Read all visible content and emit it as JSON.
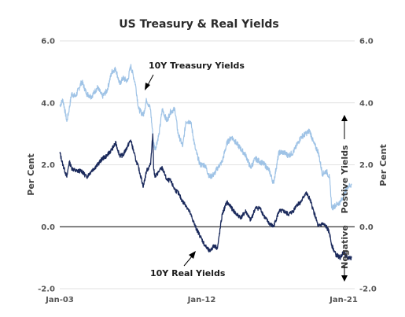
{
  "chart_data": {
    "type": "line",
    "title": "US Treasury & Real Yields",
    "ylabel_left": "Per Cent",
    "ylabel_right": "Per Cent",
    "ylim": [
      -2.0,
      6.0
    ],
    "y_ticks": [
      "6.0",
      "4.0",
      "2.0",
      "0.0",
      "-2.0"
    ],
    "xlim": [
      2003.0,
      2021.7
    ],
    "x_ticks": [
      {
        "label": "Jan-03",
        "year": 2003.0
      },
      {
        "label": "Jan-12",
        "year": 2012.0
      },
      {
        "label": "Jan-21",
        "year": 2021.0
      }
    ],
    "grid": true,
    "zero_line": true,
    "colors": {
      "treasury": "#9fc3e6",
      "real": "#1b2a5c",
      "grid": "#d9d9d9",
      "zero": "#000000"
    },
    "series": [
      {
        "name": "10Y Treasury Yields",
        "x": [
          2003.0,
          2003.2,
          2003.45,
          2003.6,
          2003.75,
          2004.0,
          2004.4,
          2004.7,
          2005.0,
          2005.4,
          2005.7,
          2006.0,
          2006.3,
          2006.55,
          2006.8,
          2007.0,
          2007.3,
          2007.5,
          2007.8,
          2008.0,
          2008.3,
          2008.5,
          2008.75,
          2008.95,
          2009.05,
          2009.3,
          2009.5,
          2009.8,
          2010.0,
          2010.3,
          2010.5,
          2010.8,
          2011.0,
          2011.3,
          2011.6,
          2011.9,
          2012.2,
          2012.5,
          2012.8,
          2013.0,
          2013.3,
          2013.6,
          2013.9,
          2014.2,
          2014.5,
          2014.8,
          2015.1,
          2015.4,
          2015.7,
          2016.0,
          2016.3,
          2016.55,
          2016.9,
          2017.2,
          2017.5,
          2017.8,
          2018.0,
          2018.3,
          2018.6,
          2018.85,
          2019.1,
          2019.4,
          2019.65,
          2019.9,
          2020.1,
          2020.25,
          2020.5,
          2020.8,
          2021.0,
          2021.25,
          2021.5
        ],
        "y": [
          3.9,
          4.1,
          3.4,
          3.8,
          4.3,
          4.2,
          4.7,
          4.3,
          4.2,
          4.5,
          4.2,
          4.4,
          5.0,
          5.1,
          4.6,
          4.8,
          4.7,
          5.2,
          4.6,
          3.8,
          3.6,
          4.1,
          3.8,
          2.7,
          2.5,
          3.0,
          3.8,
          3.4,
          3.7,
          3.8,
          3.0,
          2.6,
          3.4,
          3.4,
          2.5,
          2.0,
          2.0,
          1.6,
          1.7,
          1.9,
          2.1,
          2.7,
          2.9,
          2.7,
          2.5,
          2.3,
          1.9,
          2.2,
          2.1,
          2.0,
          1.8,
          1.4,
          2.4,
          2.4,
          2.3,
          2.4,
          2.6,
          2.9,
          3.0,
          3.1,
          2.7,
          2.4,
          1.7,
          1.8,
          1.6,
          0.6,
          0.7,
          0.8,
          1.0,
          1.3,
          1.35
        ]
      },
      {
        "name": "10Y Real Yields",
        "x": [
          2003.0,
          2003.2,
          2003.45,
          2003.6,
          2003.75,
          2004.0,
          2004.4,
          2004.7,
          2005.0,
          2005.4,
          2005.7,
          2006.0,
          2006.3,
          2006.55,
          2006.8,
          2007.0,
          2007.3,
          2007.5,
          2007.8,
          2008.0,
          2008.3,
          2008.5,
          2008.75,
          2008.9,
          2008.95,
          2009.05,
          2009.3,
          2009.5,
          2009.8,
          2010.0,
          2010.3,
          2010.5,
          2010.8,
          2011.0,
          2011.3,
          2011.6,
          2011.9,
          2012.2,
          2012.5,
          2012.8,
          2013.0,
          2013.3,
          2013.6,
          2013.9,
          2014.2,
          2014.5,
          2014.8,
          2015.1,
          2015.4,
          2015.7,
          2016.0,
          2016.3,
          2016.55,
          2016.9,
          2017.2,
          2017.5,
          2017.8,
          2018.0,
          2018.3,
          2018.6,
          2018.85,
          2019.1,
          2019.4,
          2019.65,
          2019.9,
          2020.1,
          2020.25,
          2020.5,
          2020.8,
          2021.0,
          2021.25,
          2021.5
        ],
        "y": [
          2.4,
          2.0,
          1.6,
          2.1,
          1.9,
          1.8,
          1.8,
          1.6,
          1.8,
          2.0,
          2.2,
          2.3,
          2.5,
          2.7,
          2.3,
          2.3,
          2.6,
          2.8,
          2.2,
          1.9,
          1.3,
          1.8,
          2.0,
          3.0,
          1.9,
          1.6,
          1.8,
          1.9,
          1.5,
          1.5,
          1.2,
          1.1,
          0.8,
          0.7,
          0.4,
          0.0,
          -0.3,
          -0.6,
          -0.8,
          -0.6,
          -0.7,
          0.4,
          0.8,
          0.6,
          0.4,
          0.3,
          0.5,
          0.2,
          0.6,
          0.6,
          0.3,
          0.1,
          0.0,
          0.5,
          0.5,
          0.4,
          0.5,
          0.7,
          0.8,
          1.1,
          0.9,
          0.5,
          0.0,
          0.1,
          0.0,
          -0.2,
          -0.6,
          -0.9,
          -1.0,
          -0.8,
          -1.0,
          -1.0
        ]
      }
    ],
    "annotations": [
      {
        "text": "10Y Treasury Yields",
        "arrow_to": {
          "year": 2007.75,
          "value": 4.35
        }
      },
      {
        "text": "10Y Real Yields",
        "arrow_to": {
          "year": 2013.45,
          "value": -0.75
        }
      }
    ],
    "side_labels": {
      "positive": "Postive  Yields",
      "negative": "Negative"
    }
  }
}
